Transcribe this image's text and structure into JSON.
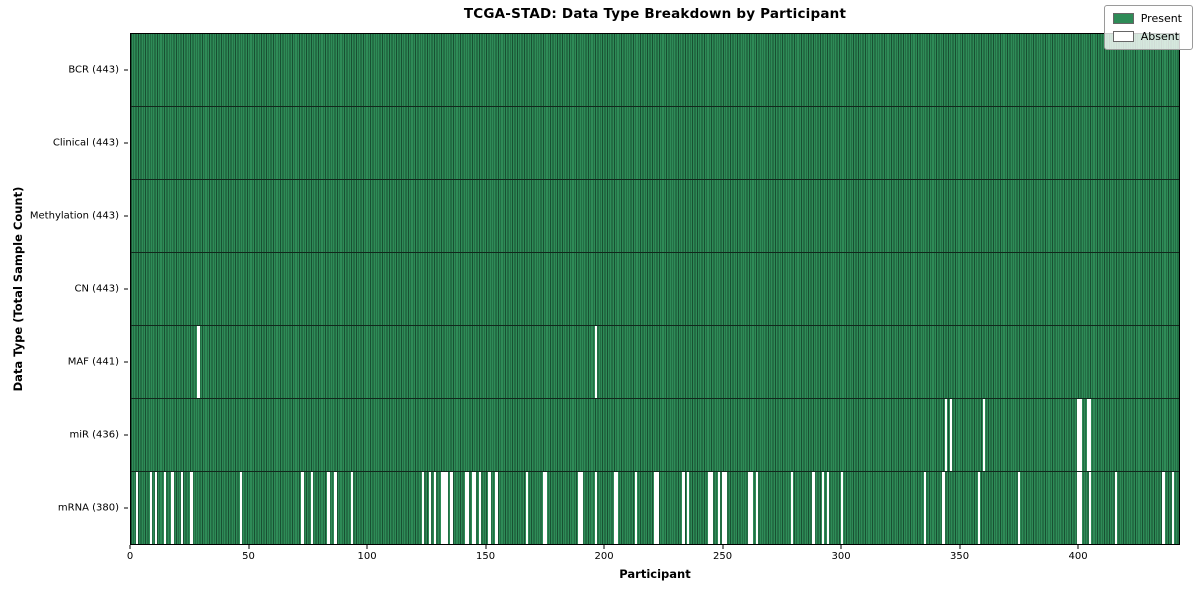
{
  "title": "TCGA-STAD: Data Type Breakdown by Participant",
  "xlabel": "Participant",
  "ylabel": "Data Type (Total Sample Count)",
  "legend": {
    "present_label": "Present",
    "absent_label": "Absent"
  },
  "colors": {
    "present": "#2e8b57",
    "absent": "#ffffff",
    "edge": "#000000"
  },
  "chart_data": {
    "type": "heatmap",
    "xlabel": "Participant",
    "ylabel": "Data Type (Total Sample Count)",
    "x_ticks": [
      0,
      50,
      100,
      150,
      200,
      250,
      300,
      350,
      400
    ],
    "n_participants": 443,
    "x_range": [
      0,
      443
    ],
    "legend_position": "upper right",
    "rows": [
      {
        "label": "BCR (443)",
        "name": "BCR",
        "total": 443,
        "absent": []
      },
      {
        "label": "Clinical (443)",
        "name": "Clinical",
        "total": 443,
        "absent": []
      },
      {
        "label": "Methylation (443)",
        "name": "Methylation",
        "total": 443,
        "absent": []
      },
      {
        "label": "CN (443)",
        "name": "CN",
        "total": 443,
        "absent": []
      },
      {
        "label": "MAF (441)",
        "name": "MAF",
        "total": 441,
        "absent": [
          28,
          196
        ]
      },
      {
        "label": "miR (436)",
        "name": "miR",
        "total": 436,
        "absent": [
          344,
          346,
          360,
          400,
          401,
          404,
          405
        ]
      },
      {
        "label": "mRNA (380)",
        "name": "mRNA",
        "total": 380,
        "absent": [
          2,
          8,
          10,
          14,
          17,
          21,
          25,
          46,
          72,
          76,
          83,
          86,
          93,
          123,
          126,
          128,
          131,
          132,
          133,
          135,
          141,
          142,
          144,
          145,
          147,
          151,
          154,
          167,
          174,
          175,
          189,
          190,
          196,
          204,
          205,
          213,
          221,
          222,
          233,
          235,
          244,
          245,
          248,
          250,
          251,
          261,
          262,
          264,
          279,
          288,
          292,
          294,
          300,
          335,
          343,
          358,
          375,
          400,
          401,
          405,
          416,
          436,
          440
        ]
      }
    ]
  }
}
